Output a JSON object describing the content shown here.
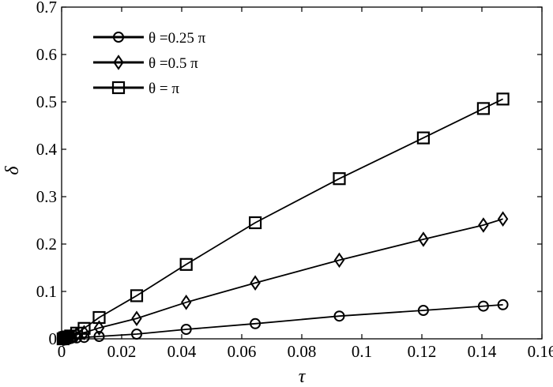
{
  "chart_data": {
    "type": "line",
    "title": "",
    "xlabel": "τ",
    "ylabel": "δ",
    "xlim": [
      0,
      0.16
    ],
    "ylim": [
      0,
      0.7
    ],
    "xticks": [
      "0",
      "0.02",
      "0.04",
      "0.06",
      "0.08",
      "0.1",
      "0.12",
      "0.14",
      "0.16"
    ],
    "yticks": [
      "0",
      "0.1",
      "0.2",
      "0.3",
      "0.4",
      "0.5",
      "0.6",
      "0.7"
    ],
    "grid": false,
    "legend_position": "top-left",
    "series": [
      {
        "name": "θ =0.25 π",
        "marker": "circle",
        "points": [
          [
            0.0005,
            0.0
          ],
          [
            0.001,
            0.0005
          ],
          [
            0.0015,
            0.001
          ],
          [
            0.002,
            0.001
          ],
          [
            0.003,
            0.001
          ],
          [
            0.005,
            0.002
          ],
          [
            0.0075,
            0.003
          ],
          [
            0.0125,
            0.005
          ],
          [
            0.025,
            0.01
          ],
          [
            0.0415,
            0.02
          ],
          [
            0.0645,
            0.032
          ],
          [
            0.0925,
            0.048
          ],
          [
            0.1205,
            0.06
          ],
          [
            0.1405,
            0.069
          ],
          [
            0.147,
            0.072
          ]
        ]
      },
      {
        "name": "θ =0.5 π",
        "marker": "diamond",
        "points": [
          [
            0.0005,
            0.0
          ],
          [
            0.001,
            0.001
          ],
          [
            0.0015,
            0.002
          ],
          [
            0.002,
            0.003
          ],
          [
            0.003,
            0.005
          ],
          [
            0.005,
            0.009
          ],
          [
            0.0075,
            0.013
          ],
          [
            0.0125,
            0.023
          ],
          [
            0.025,
            0.043
          ],
          [
            0.0415,
            0.077
          ],
          [
            0.0645,
            0.118
          ],
          [
            0.0925,
            0.166
          ],
          [
            0.1205,
            0.21
          ],
          [
            0.1405,
            0.24
          ],
          [
            0.147,
            0.253
          ]
        ]
      },
      {
        "name": "θ = π",
        "marker": "square",
        "points": [
          [
            0.0005,
            0.0
          ],
          [
            0.001,
            0.002
          ],
          [
            0.0015,
            0.003
          ],
          [
            0.002,
            0.004
          ],
          [
            0.003,
            0.006
          ],
          [
            0.005,
            0.012
          ],
          [
            0.0075,
            0.022
          ],
          [
            0.0125,
            0.045
          ],
          [
            0.025,
            0.091
          ],
          [
            0.0415,
            0.157
          ],
          [
            0.0645,
            0.245
          ],
          [
            0.0925,
            0.338
          ],
          [
            0.1205,
            0.424
          ],
          [
            0.1405,
            0.486
          ],
          [
            0.147,
            0.506
          ]
        ]
      }
    ]
  }
}
